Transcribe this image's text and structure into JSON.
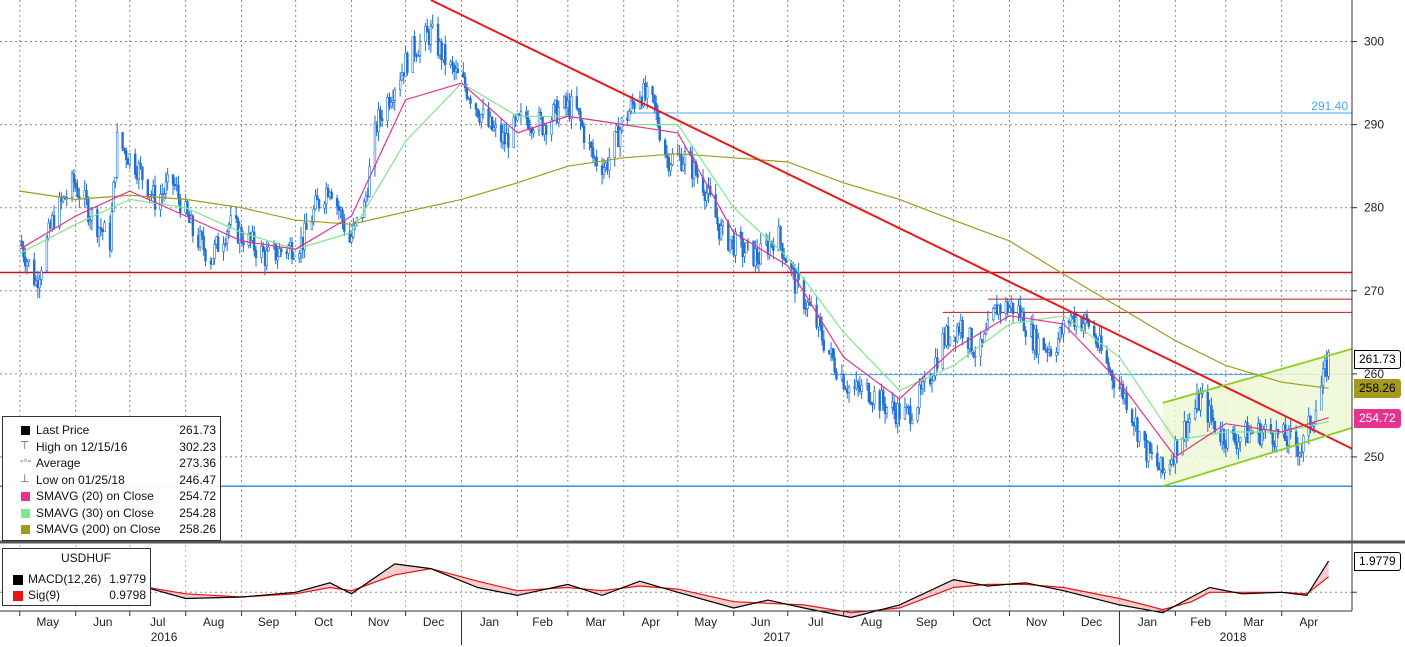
{
  "chart_data": {
    "type": "line",
    "instrument": "USDHUF",
    "price_axis": {
      "min": 240,
      "max": 305,
      "ticks": [
        250,
        260,
        270,
        280,
        290,
        300
      ]
    },
    "time_axis": {
      "months": [
        "May",
        "Jun",
        "Jul",
        "Aug",
        "Sep",
        "Oct",
        "Nov",
        "Dec",
        "Jan",
        "Feb",
        "Mar",
        "Apr",
        "May",
        "Jun",
        "Jul",
        "Aug",
        "Sep",
        "Oct",
        "Nov",
        "Dec",
        "Jan",
        "Feb",
        "Mar",
        "Apr"
      ],
      "years": [
        "2016",
        "2017",
        "2018"
      ]
    },
    "price_series": [
      [
        "2016-05-01",
        276.0
      ],
      [
        "2016-05-10",
        271.0
      ],
      [
        "2016-05-20",
        279.0
      ],
      [
        "2016-05-31",
        283.0
      ],
      [
        "2016-06-10",
        279.0
      ],
      [
        "2016-06-20",
        276.0
      ],
      [
        "2016-06-24",
        288.0
      ],
      [
        "2016-07-05",
        285.0
      ],
      [
        "2016-07-15",
        281.0
      ],
      [
        "2016-07-25",
        283.0
      ],
      [
        "2016-08-05",
        277.0
      ],
      [
        "2016-08-15",
        274.0
      ],
      [
        "2016-08-25",
        278.0
      ],
      [
        "2016-09-05",
        276.0
      ],
      [
        "2016-09-15",
        274.0
      ],
      [
        "2016-09-25",
        275.0
      ],
      [
        "2016-10-05",
        276.0
      ],
      [
        "2016-10-12",
        280.0
      ],
      [
        "2016-10-20",
        283.0
      ],
      [
        "2016-10-31",
        276.0
      ],
      [
        "2016-11-08",
        280.0
      ],
      [
        "2016-11-15",
        290.0
      ],
      [
        "2016-11-25",
        295.0
      ],
      [
        "2016-12-05",
        299.0
      ],
      [
        "2016-12-15",
        301.0
      ],
      [
        "2016-12-25",
        297.0
      ],
      [
        "2017-01-05",
        294.0
      ],
      [
        "2017-01-15",
        290.0
      ],
      [
        "2017-01-25",
        288.0
      ],
      [
        "2017-02-05",
        291.0
      ],
      [
        "2017-02-15",
        290.0
      ],
      [
        "2017-02-25",
        292.0
      ],
      [
        "2017-03-05",
        292.0
      ],
      [
        "2017-03-15",
        286.0
      ],
      [
        "2017-03-22",
        285.0
      ],
      [
        "2017-03-31",
        290.0
      ],
      [
        "2017-04-10",
        294.0
      ],
      [
        "2017-04-18",
        292.0
      ],
      [
        "2017-04-25",
        286.0
      ],
      [
        "2017-05-05",
        286.0
      ],
      [
        "2017-05-15",
        283.0
      ],
      [
        "2017-05-25",
        277.0
      ],
      [
        "2017-06-05",
        275.0
      ],
      [
        "2017-06-15",
        274.0
      ],
      [
        "2017-06-25",
        277.0
      ],
      [
        "2017-07-05",
        271.0
      ],
      [
        "2017-07-15",
        267.0
      ],
      [
        "2017-07-25",
        262.0
      ],
      [
        "2017-08-05",
        258.0
      ],
      [
        "2017-08-15",
        258.0
      ],
      [
        "2017-08-25",
        256.0
      ],
      [
        "2017-09-05",
        255.0
      ],
      [
        "2017-09-15",
        258.0
      ],
      [
        "2017-09-25",
        264.0
      ],
      [
        "2017-10-05",
        266.0
      ],
      [
        "2017-10-15",
        262.0
      ],
      [
        "2017-10-25",
        268.0
      ],
      [
        "2017-11-05",
        268.0
      ],
      [
        "2017-11-15",
        264.0
      ],
      [
        "2017-11-25",
        263.0
      ],
      [
        "2017-12-05",
        267.0
      ],
      [
        "2017-12-15",
        266.0
      ],
      [
        "2017-12-25",
        261.0
      ],
      [
        "2018-01-05",
        257.0
      ],
      [
        "2018-01-15",
        251.0
      ],
      [
        "2018-01-25",
        248.0
      ],
      [
        "2018-02-05",
        253.0
      ],
      [
        "2018-02-15",
        257.0
      ],
      [
        "2018-02-25",
        253.0
      ],
      [
        "2018-03-05",
        252.0
      ],
      [
        "2018-03-15",
        253.0
      ],
      [
        "2018-03-25",
        253.0
      ],
      [
        "2018-04-05",
        252.0
      ],
      [
        "2018-04-12",
        251.0
      ],
      [
        "2018-04-20",
        256.0
      ],
      [
        "2018-04-27",
        261.73
      ]
    ],
    "sma20": [
      [
        "2016-05-01",
        275.0
      ],
      [
        "2016-06-01",
        279.0
      ],
      [
        "2016-07-01",
        282.0
      ],
      [
        "2016-08-01",
        279.0
      ],
      [
        "2016-09-01",
        276.0
      ],
      [
        "2016-10-01",
        275.0
      ],
      [
        "2016-11-01",
        279.0
      ],
      [
        "2016-12-01",
        293.0
      ],
      [
        "2017-01-01",
        295.0
      ],
      [
        "2017-02-01",
        289.0
      ],
      [
        "2017-03-01",
        291.0
      ],
      [
        "2017-04-01",
        290.0
      ],
      [
        "2017-05-01",
        289.0
      ],
      [
        "2017-06-01",
        277.0
      ],
      [
        "2017-07-01",
        273.0
      ],
      [
        "2017-08-01",
        262.0
      ],
      [
        "2017-09-01",
        257.0
      ],
      [
        "2017-10-01",
        263.0
      ],
      [
        "2017-11-01",
        267.0
      ],
      [
        "2017-12-01",
        266.0
      ],
      [
        "2018-01-01",
        259.0
      ],
      [
        "2018-02-01",
        250.0
      ],
      [
        "2018-03-01",
        254.0
      ],
      [
        "2018-04-01",
        253.0
      ],
      [
        "2018-04-27",
        254.72
      ]
    ],
    "sma30": [
      [
        "2016-05-01",
        274.5
      ],
      [
        "2016-06-01",
        278.0
      ],
      [
        "2016-07-01",
        281.0
      ],
      [
        "2016-08-01",
        280.0
      ],
      [
        "2016-09-01",
        277.0
      ],
      [
        "2016-10-01",
        275.0
      ],
      [
        "2016-11-01",
        277.0
      ],
      [
        "2016-12-01",
        288.0
      ],
      [
        "2017-01-01",
        295.0
      ],
      [
        "2017-02-01",
        291.0
      ],
      [
        "2017-03-01",
        291.0
      ],
      [
        "2017-04-01",
        290.0
      ],
      [
        "2017-05-01",
        290.0
      ],
      [
        "2017-06-01",
        280.0
      ],
      [
        "2017-07-01",
        274.0
      ],
      [
        "2017-08-01",
        265.0
      ],
      [
        "2017-09-01",
        258.0
      ],
      [
        "2017-10-01",
        261.0
      ],
      [
        "2017-11-01",
        266.0
      ],
      [
        "2017-12-01",
        267.0
      ],
      [
        "2018-01-01",
        262.0
      ],
      [
        "2018-02-01",
        252.0
      ],
      [
        "2018-03-01",
        253.0
      ],
      [
        "2018-04-01",
        253.0
      ],
      [
        "2018-04-27",
        254.28
      ]
    ],
    "sma200": [
      [
        "2016-05-01",
        282.0
      ],
      [
        "2016-06-01",
        281.0
      ],
      [
        "2016-07-01",
        281.5
      ],
      [
        "2016-08-01",
        281.0
      ],
      [
        "2016-09-01",
        280.0
      ],
      [
        "2016-10-01",
        278.5
      ],
      [
        "2016-11-01",
        278.0
      ],
      [
        "2016-12-01",
        279.5
      ],
      [
        "2017-01-01",
        281.0
      ],
      [
        "2017-02-01",
        283.0
      ],
      [
        "2017-03-01",
        285.0
      ],
      [
        "2017-04-01",
        286.0
      ],
      [
        "2017-05-01",
        286.5
      ],
      [
        "2017-06-01",
        286.0
      ],
      [
        "2017-07-01",
        285.5
      ],
      [
        "2017-08-01",
        283.0
      ],
      [
        "2017-09-01",
        281.0
      ],
      [
        "2017-10-01",
        278.5
      ],
      [
        "2017-11-01",
        276.0
      ],
      [
        "2017-12-01",
        272.0
      ],
      [
        "2018-01-01",
        268.0
      ],
      [
        "2018-02-01",
        264.0
      ],
      [
        "2018-03-01",
        261.0
      ],
      [
        "2018-04-01",
        259.0
      ],
      [
        "2018-04-27",
        258.26
      ]
    ],
    "trendlines": [
      {
        "kind": "downtrend",
        "color": "#e8191a",
        "from": [
          "2016-12-15",
          305.0
        ],
        "to": [
          "2018-05-10",
          251.0
        ]
      },
      {
        "kind": "channel-upper",
        "color": "#8ccf1c",
        "from": [
          "2018-01-25",
          256.5
        ],
        "to": [
          "2018-05-10",
          263.0
        ]
      },
      {
        "kind": "channel-lower",
        "color": "#8ccf1c",
        "from": [
          "2018-01-25",
          246.47
        ],
        "to": [
          "2018-05-10",
          253.5
        ]
      }
    ],
    "hlines": [
      {
        "value": 291.4,
        "color": "#3fa9f5",
        "from": "2017-04-05",
        "label": "291.40"
      },
      {
        "value": 272.2,
        "color": "#c0141c",
        "from": "2016-04-20",
        "label": ""
      },
      {
        "value": 269.0,
        "color": "#c0141c",
        "from": "2017-10-20",
        "label": ""
      },
      {
        "value": 267.4,
        "color": "#c0141c",
        "from": "2017-09-25",
        "label": ""
      },
      {
        "value": 259.9,
        "color": "#3fa9f5",
        "from": "2017-07-25",
        "label": ""
      },
      {
        "value": 246.47,
        "color": "#3a8fe0",
        "from": "2016-04-20",
        "label": ""
      }
    ],
    "right_tags": [
      {
        "label": "261.73",
        "value": 261.73,
        "bg": "#ffffff",
        "fg": "#000000",
        "border": "#000000"
      },
      {
        "label": "258.26",
        "value": 258.26,
        "bg": "#a39a1d",
        "fg": "#000000",
        "border": "#a39a1d"
      },
      {
        "label": "254.72",
        "value": 254.72,
        "bg": "#e5338f",
        "fg": "#ffffff",
        "border": "#e5338f"
      }
    ],
    "macd": {
      "min": -1.0,
      "max": 3.0,
      "macd_value": "1.9779",
      "signal_value": "0.9798",
      "macd_series": [
        [
          "2016-05-01",
          -0.3
        ],
        [
          "2016-06-01",
          0.3
        ],
        [
          "2016-07-01",
          0.6
        ],
        [
          "2016-08-01",
          -0.4
        ],
        [
          "2016-09-01",
          -0.3
        ],
        [
          "2016-10-01",
          0.0
        ],
        [
          "2016-10-20",
          0.6
        ],
        [
          "2016-11-01",
          -0.1
        ],
        [
          "2016-11-25",
          1.8
        ],
        [
          "2016-12-15",
          1.5
        ],
        [
          "2017-01-10",
          0.3
        ],
        [
          "2017-02-01",
          -0.2
        ],
        [
          "2017-03-01",
          0.5
        ],
        [
          "2017-03-20",
          -0.2
        ],
        [
          "2017-04-10",
          0.7
        ],
        [
          "2017-05-01",
          0.0
        ],
        [
          "2017-06-01",
          -1.0
        ],
        [
          "2017-06-20",
          -0.5
        ],
        [
          "2017-07-10",
          -1.0
        ],
        [
          "2017-08-05",
          -1.6
        ],
        [
          "2017-09-01",
          -0.8
        ],
        [
          "2017-10-01",
          0.8
        ],
        [
          "2017-10-20",
          0.4
        ],
        [
          "2017-11-10",
          0.6
        ],
        [
          "2017-12-01",
          0.1
        ],
        [
          "2018-01-01",
          -0.8
        ],
        [
          "2018-01-25",
          -1.3
        ],
        [
          "2018-02-10",
          -0.3
        ],
        [
          "2018-02-20",
          0.3
        ],
        [
          "2018-03-10",
          -0.1
        ],
        [
          "2018-04-01",
          0.0
        ],
        [
          "2018-04-15",
          -0.2
        ],
        [
          "2018-04-27",
          1.9779
        ]
      ],
      "signal_series": [
        [
          "2016-05-01",
          -0.2
        ],
        [
          "2016-06-01",
          0.1
        ],
        [
          "2016-07-01",
          0.5
        ],
        [
          "2016-08-01",
          -0.1
        ],
        [
          "2016-09-01",
          -0.3
        ],
        [
          "2016-10-01",
          -0.1
        ],
        [
          "2016-10-20",
          0.3
        ],
        [
          "2016-11-01",
          0.1
        ],
        [
          "2016-11-25",
          1.1
        ],
        [
          "2016-12-15",
          1.5
        ],
        [
          "2017-01-10",
          0.7
        ],
        [
          "2017-02-01",
          0.1
        ],
        [
          "2017-03-01",
          0.3
        ],
        [
          "2017-03-20",
          0.1
        ],
        [
          "2017-04-10",
          0.4
        ],
        [
          "2017-05-01",
          0.2
        ],
        [
          "2017-06-01",
          -0.6
        ],
        [
          "2017-06-20",
          -0.7
        ],
        [
          "2017-07-10",
          -0.8
        ],
        [
          "2017-08-05",
          -1.3
        ],
        [
          "2017-09-01",
          -1.0
        ],
        [
          "2017-10-01",
          0.3
        ],
        [
          "2017-10-20",
          0.5
        ],
        [
          "2017-11-10",
          0.5
        ],
        [
          "2017-12-01",
          0.3
        ],
        [
          "2018-01-01",
          -0.4
        ],
        [
          "2018-01-25",
          -1.1
        ],
        [
          "2018-02-10",
          -0.6
        ],
        [
          "2018-02-20",
          0.0
        ],
        [
          "2018-03-10",
          0.0
        ],
        [
          "2018-04-01",
          0.0
        ],
        [
          "2018-04-15",
          -0.1
        ],
        [
          "2018-04-27",
          0.9798
        ]
      ],
      "tag_label": "1.9779"
    }
  },
  "legend": {
    "rows": [
      {
        "name": "legend-last-price",
        "label": "Last Price",
        "value": "261.73",
        "color": "#000000",
        "marker": ""
      },
      {
        "name": "legend-high",
        "label": "High on 12/15/16",
        "value": "302.23",
        "color": "",
        "marker": "⊤"
      },
      {
        "name": "legend-average",
        "label": "Average",
        "value": "273.36",
        "color": "",
        "marker": "-◦-"
      },
      {
        "name": "legend-low",
        "label": "Low on 01/25/18",
        "value": "246.47",
        "color": "",
        "marker": "⊥"
      },
      {
        "name": "legend-sma20",
        "label": "SMAVG (20) on Close",
        "value": "254.72",
        "color": "#e5338f",
        "marker": ""
      },
      {
        "name": "legend-sma30",
        "label": "SMAVG (30) on Close",
        "value": "254.28",
        "color": "#7ee88c",
        "marker": ""
      },
      {
        "name": "legend-sma200",
        "label": "SMAVG (200) on Close",
        "value": "258.26",
        "color": "#a39a1d",
        "marker": ""
      }
    ]
  },
  "macd_legend": {
    "title": "USDHUF",
    "macd_label": "MACD(12,26)",
    "macd_value": "1.9779",
    "macd_color": "#000000",
    "sig_label": "Sig(9)",
    "sig_value": "0.9798",
    "sig_color": "#ee1111"
  }
}
